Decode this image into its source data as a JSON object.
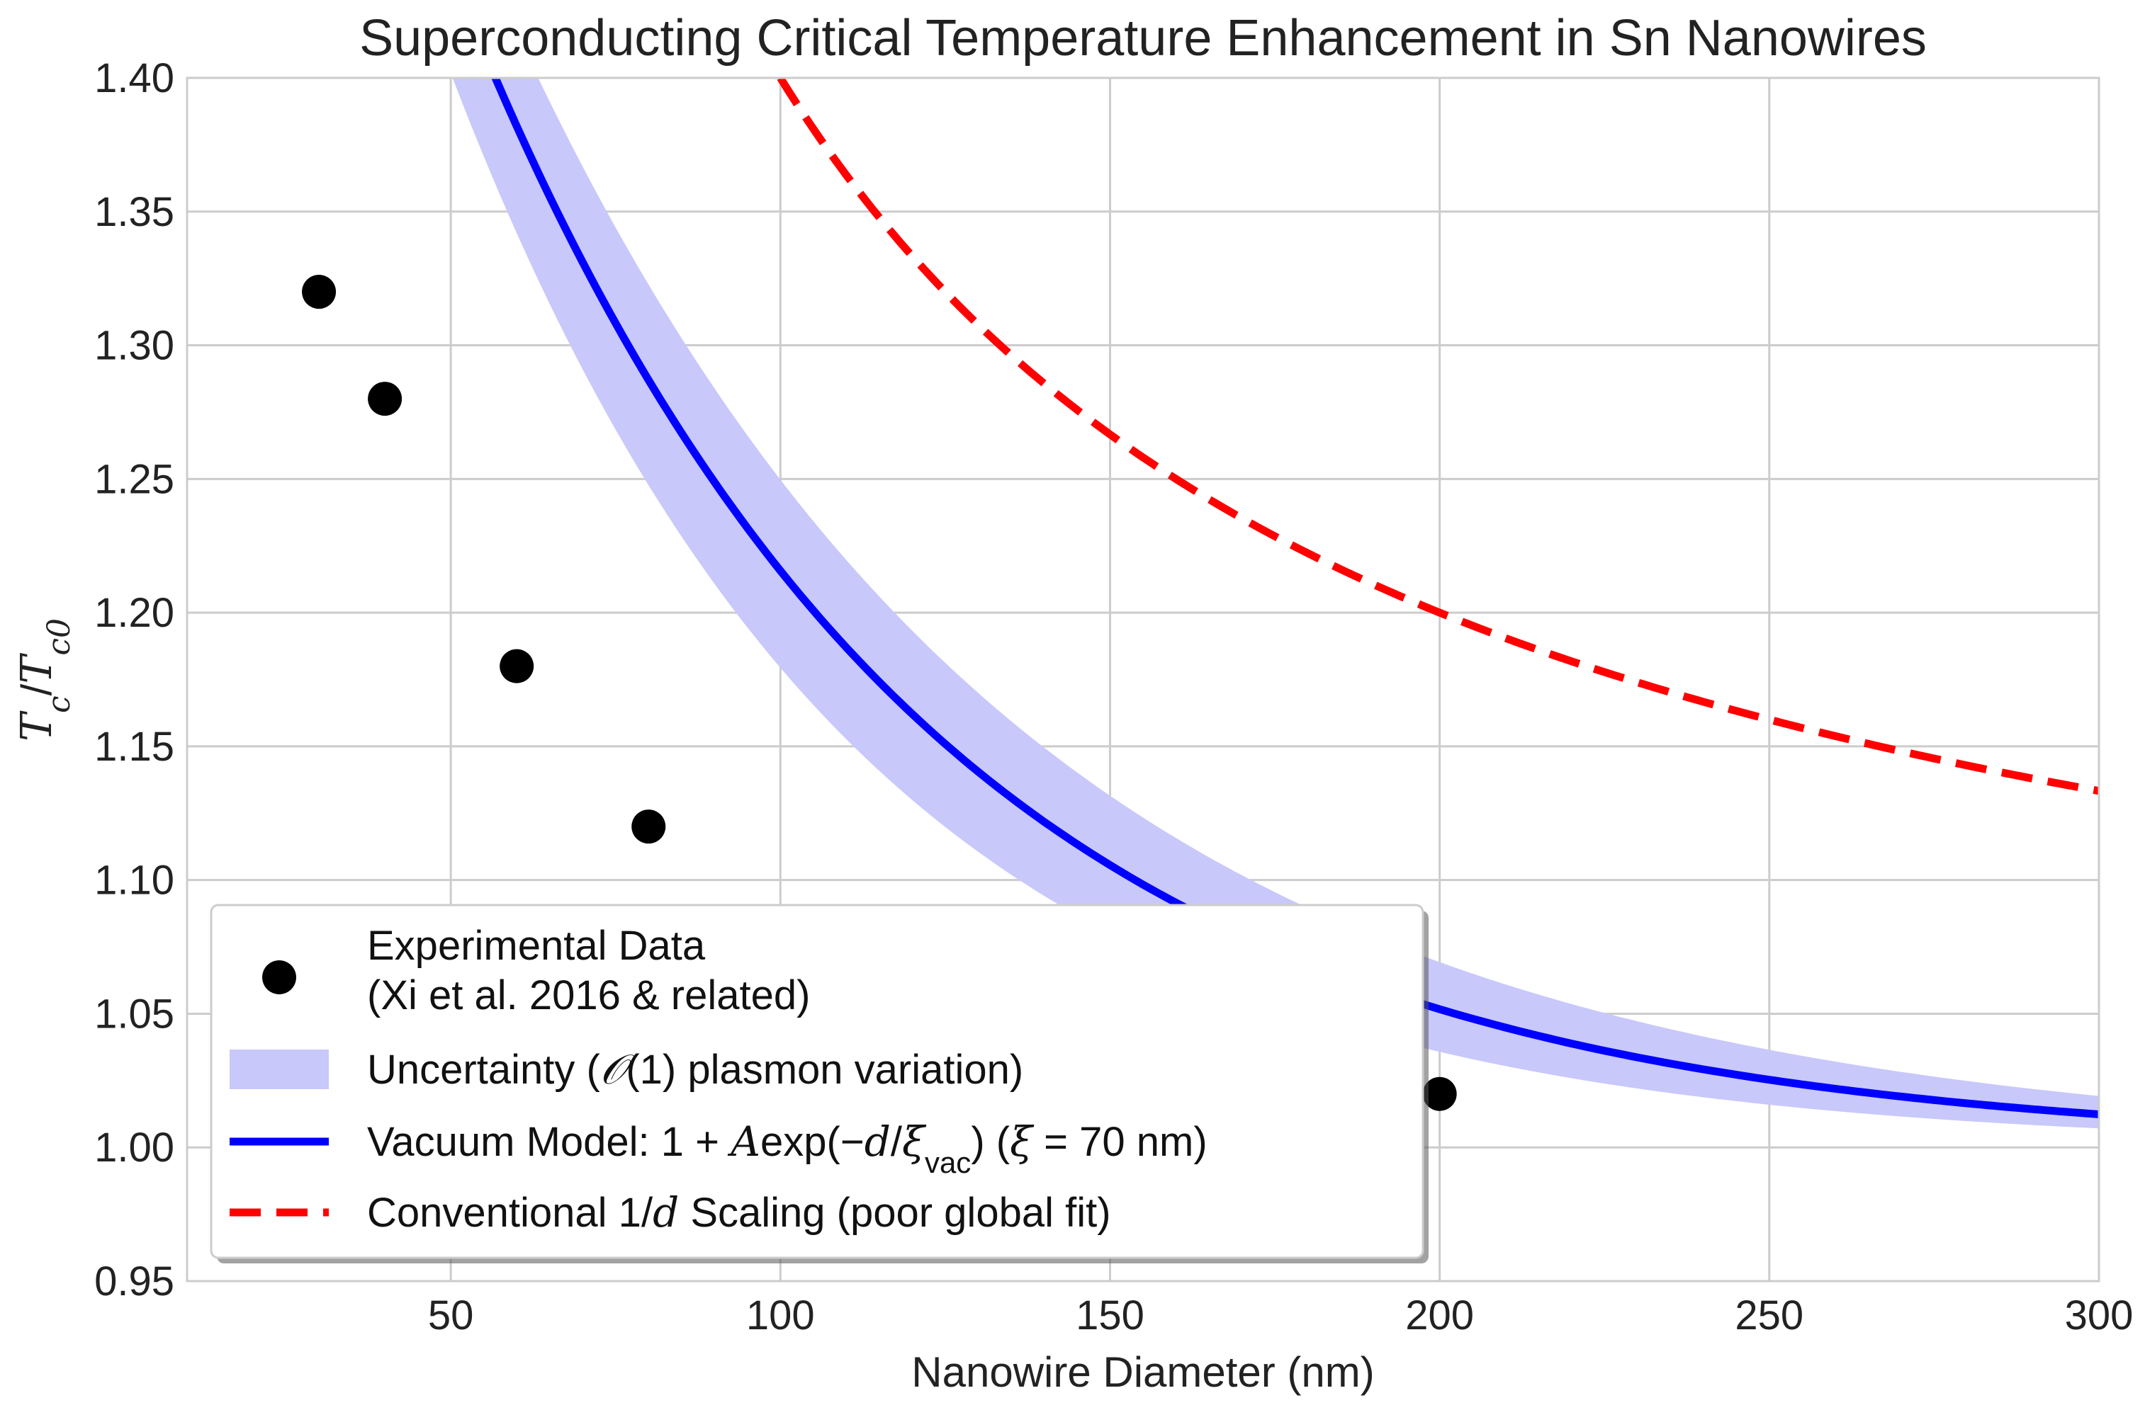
{
  "chart_data": {
    "type": "line",
    "title": "Superconducting Critical Temperature Enhancement in Sn Nanowires",
    "xlabel": "Nanowire Diameter (nm)",
    "ylabel": {
      "main": "T",
      "sub1": "c",
      "sep": "/",
      "main2": "T",
      "sub2": "c0",
      "full": "Tc/Tc0"
    },
    "xlim": [
      10,
      300
    ],
    "ylim": [
      0.95,
      1.4
    ],
    "xticks": [
      50,
      100,
      150,
      200,
      250,
      300
    ],
    "xtick_labels": [
      "50",
      "100",
      "150",
      "200",
      "250",
      "300"
    ],
    "yticks": [
      0.95,
      1.0,
      1.05,
      1.1,
      1.15,
      1.2,
      1.25,
      1.3,
      1.35,
      1.4
    ],
    "ytick_labels": [
      "0.95",
      "1.00",
      "1.05",
      "1.10",
      "1.15",
      "1.20",
      "1.25",
      "1.30",
      "1.35",
      "1.40"
    ],
    "grid": true,
    "legend_position": "lower-left",
    "series": [
      {
        "name": "Experimental Data (Xi et al. 2016 & related)",
        "kind": "scatter",
        "color": "#000000",
        "x": [
          30,
          40,
          60,
          80,
          200
        ],
        "y": [
          1.32,
          1.28,
          1.18,
          1.12,
          1.02
        ]
      },
      {
        "name": "Uncertainty (O(1) plasmon variation)",
        "kind": "band",
        "color": "#c8c8fa",
        "model": "1 + A*exp(-d/xi)",
        "A": 0.9,
        "lower_xi_nm": 62,
        "upper_xi_nm": 78
      },
      {
        "name": "Vacuum Model: 1 + A exp(-d/ξvac) (ξ = 70 nm)",
        "kind": "line",
        "color": "#0000ff",
        "model": "1 + A*exp(-d/xi)",
        "A": 0.9,
        "xi_nm": 70
      },
      {
        "name": "Conventional 1/d Scaling (poor global fit)",
        "kind": "line-dashed",
        "color": "#ff0000",
        "model": "1 + B/d",
        "B": 40,
        "x_start": 100
      }
    ],
    "legend": [
      {
        "id": "exp",
        "line1": "Experimental Data",
        "line2": "(Xi et al. 2016 & related)"
      },
      {
        "id": "unc",
        "pre": "Uncertainty (",
        "math": "𝒪",
        "post": "(1) plasmon variation)"
      },
      {
        "id": "vac",
        "pre": "Vacuum Model: 1 + ",
        "A": "A",
        "exp": "exp(−",
        "d": "d",
        "slash": "/",
        "xi": "ξ",
        "xisub": "vac",
        "mid": ") (",
        "xi2": "ξ",
        "post": " = 70 nm)"
      },
      {
        "id": "conv",
        "pre": "Conventional 1/",
        "d": "d",
        "post": " Scaling (poor global fit)"
      }
    ]
  }
}
